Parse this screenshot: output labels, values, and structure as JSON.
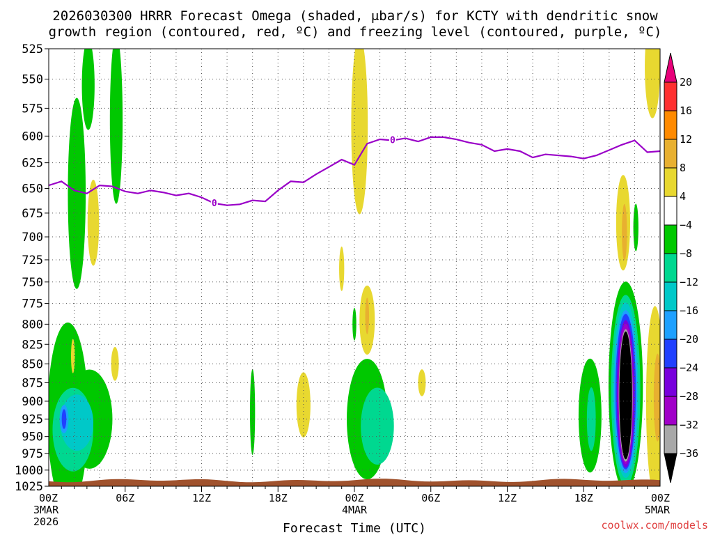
{
  "chart_data": {
    "type": "heatmap",
    "title": "2026030300 HRRR Forecast Omega (shaded, μbar/s) for KCTY with dendritic snow",
    "subtitle": "growth region (contoured, red, ºC) and freezing level (contoured, purple, ºC)",
    "xlabel": "Forecast Time (UTC)",
    "ylabel": "",
    "credit": "coolwx.com/models",
    "x_ticks": [
      {
        "h": 0,
        "label": "00Z",
        "sub1": "3MAR",
        "sub2": "2026"
      },
      {
        "h": 6,
        "label": "06Z",
        "sub1": "",
        "sub2": ""
      },
      {
        "h": 12,
        "label": "12Z",
        "sub1": "",
        "sub2": ""
      },
      {
        "h": 18,
        "label": "18Z",
        "sub1": "",
        "sub2": ""
      },
      {
        "h": 24,
        "label": "00Z",
        "sub1": "4MAR",
        "sub2": ""
      },
      {
        "h": 30,
        "label": "06Z",
        "sub1": "",
        "sub2": ""
      },
      {
        "h": 36,
        "label": "12Z",
        "sub1": "",
        "sub2": ""
      },
      {
        "h": 42,
        "label": "18Z",
        "sub1": "",
        "sub2": ""
      },
      {
        "h": 48,
        "label": "00Z",
        "sub1": "5MAR",
        "sub2": ""
      }
    ],
    "xlim": [
      0,
      48
    ],
    "y_ticks": [
      525,
      550,
      575,
      600,
      625,
      650,
      675,
      700,
      725,
      750,
      775,
      800,
      825,
      850,
      875,
      900,
      925,
      950,
      975,
      1000,
      1025
    ],
    "ylim": [
      525,
      1025
    ],
    "y_scale": "log-pressure",
    "grid": true,
    "colorbar": {
      "levels": [
        -36,
        -32,
        -28,
        -24,
        -20,
        -16,
        -12,
        -8,
        -4,
        4,
        8,
        12,
        16,
        20
      ],
      "labels": [
        "20",
        "16",
        "12",
        "8",
        "4",
        "−4",
        "−8",
        "−12",
        "−16",
        "−20",
        "−24",
        "−28",
        "−32",
        "−36"
      ],
      "colors": {
        "gt20": "#e8007a",
        "16_20": "#ff3030",
        "12_16": "#ff8a00",
        "8_12": "#e8b030",
        "4_8": "#e8d830",
        "m4_4": "#ffffff",
        "m8_m4": "#00c800",
        "m12_m8": "#00d890",
        "m16_m12": "#00c8c8",
        "m20_m16": "#1ea0ff",
        "m24_m20": "#2040ff",
        "m28_m24": "#7800dc",
        "m32_m28": "#a000c8",
        "m36_m32": "#a8a8a8",
        "lt_m36": "#000000"
      }
    },
    "freezing_level": {
      "label": "0",
      "color": "#9a00c8",
      "x": [
        0,
        1,
        2,
        3,
        4,
        5,
        6,
        7,
        8,
        9,
        10,
        11,
        12,
        13,
        14,
        15,
        16,
        17,
        18,
        19,
        20,
        21,
        22,
        23,
        24,
        25,
        26,
        27,
        28,
        29,
        30,
        31,
        32,
        33,
        34,
        35,
        36,
        37,
        38,
        39,
        40,
        41,
        42,
        43,
        44,
        45,
        46,
        47,
        48
      ],
      "p": [
        647,
        643,
        652,
        655,
        647,
        648,
        653,
        655,
        652,
        654,
        657,
        655,
        659,
        665,
        667,
        666,
        662,
        663,
        652,
        643,
        644,
        636,
        629,
        622,
        627,
        607,
        603,
        604,
        602,
        605,
        601,
        601,
        603,
        606,
        608,
        614,
        612,
        614,
        620,
        617,
        618,
        619,
        621,
        618,
        613,
        608,
        604,
        615,
        614
      ],
      "label_at": [
        [
          13,
          665
        ],
        [
          27,
          604
        ]
      ]
    },
    "omega_features": [
      {
        "t": 3.1,
        "p": 555,
        "dt": 0.5,
        "dp": 38,
        "c": "m8_m4"
      },
      {
        "t": 5.3,
        "p": 585,
        "dt": 0.5,
        "dp": 75,
        "c": "m8_m4"
      },
      {
        "t": 2.2,
        "p": 655,
        "dt": 0.7,
        "dp": 95,
        "c": "m8_m4"
      },
      {
        "t": 3.5,
        "p": 685,
        "dt": 0.45,
        "dp": 45,
        "c": "4_8"
      },
      {
        "t": 1.5,
        "p": 920,
        "dt": 1.6,
        "dp": 130,
        "c": "m8_m4"
      },
      {
        "t": 3.2,
        "p": 925,
        "dt": 1.8,
        "dp": 70,
        "c": "m8_m4"
      },
      {
        "t": 1.9,
        "p": 940,
        "dt": 1.6,
        "dp": 60,
        "c": "m12_m8"
      },
      {
        "t": 2.2,
        "p": 930,
        "dt": 1.3,
        "dp": 40,
        "c": "m16_m12"
      },
      {
        "t": 1.2,
        "p": 925,
        "dt": 0.35,
        "dp": 20,
        "c": "m20_m16"
      },
      {
        "t": 1.2,
        "p": 925,
        "dt": 0.18,
        "dp": 14,
        "c": "m24_m20"
      },
      {
        "t": 1.9,
        "p": 840,
        "dt": 0.15,
        "dp": 22,
        "c": "4_8"
      },
      {
        "t": 5.2,
        "p": 850,
        "dt": 0.3,
        "dp": 22,
        "c": "4_8"
      },
      {
        "t": 16.0,
        "p": 915,
        "dt": 0.2,
        "dp": 60,
        "c": "m8_m4"
      },
      {
        "t": 20.0,
        "p": 905,
        "dt": 0.55,
        "dp": 45,
        "c": "4_8"
      },
      {
        "t": 24.4,
        "p": 590,
        "dt": 0.65,
        "dp": 80,
        "c": "4_8"
      },
      {
        "t": 23.0,
        "p": 735,
        "dt": 0.2,
        "dp": 25,
        "c": "4_8"
      },
      {
        "t": 25.0,
        "p": 795,
        "dt": 0.6,
        "dp": 42,
        "c": "4_8"
      },
      {
        "t": 25.0,
        "p": 790,
        "dt": 0.15,
        "dp": 22,
        "c": "8_12"
      },
      {
        "t": 24.0,
        "p": 800,
        "dt": 0.15,
        "dp": 20,
        "c": "m8_m4"
      },
      {
        "t": 25.0,
        "p": 925,
        "dt": 1.6,
        "dp": 85,
        "c": "m8_m4"
      },
      {
        "t": 25.8,
        "p": 935,
        "dt": 1.3,
        "dp": 55,
        "c": "m12_m8"
      },
      {
        "t": 29.3,
        "p": 875,
        "dt": 0.3,
        "dp": 18,
        "c": "4_8"
      },
      {
        "t": 42.5,
        "p": 920,
        "dt": 0.9,
        "dp": 80,
        "c": "m8_m4"
      },
      {
        "t": 42.6,
        "p": 925,
        "dt": 0.35,
        "dp": 45,
        "c": "m12_m8"
      },
      {
        "t": 45.1,
        "p": 685,
        "dt": 0.55,
        "dp": 50,
        "c": "4_8"
      },
      {
        "t": 45.2,
        "p": 695,
        "dt": 0.2,
        "dp": 30,
        "c": "8_12"
      },
      {
        "t": 46.1,
        "p": 690,
        "dt": 0.2,
        "dp": 25,
        "c": "m8_m4"
      },
      {
        "t": 47.4,
        "p": 540,
        "dt": 0.6,
        "dp": 42,
        "c": "4_8"
      },
      {
        "t": 47.6,
        "p": 900,
        "dt": 0.7,
        "dp": 130,
        "c": "4_8"
      },
      {
        "t": 47.8,
        "p": 895,
        "dt": 0.3,
        "dp": 60,
        "c": "8_12"
      },
      {
        "t": 45.3,
        "p": 880,
        "dt": 1.35,
        "dp": 140,
        "c": "m8_m4"
      },
      {
        "t": 45.3,
        "p": 885,
        "dt": 1.15,
        "dp": 128,
        "c": "m12_m8"
      },
      {
        "t": 45.3,
        "p": 885,
        "dt": 1.0,
        "dp": 118,
        "c": "m16_m12"
      },
      {
        "t": 45.3,
        "p": 887,
        "dt": 0.9,
        "dp": 110,
        "c": "m20_m16"
      },
      {
        "t": 45.3,
        "p": 887,
        "dt": 0.8,
        "dp": 105,
        "c": "m24_m20"
      },
      {
        "t": 45.3,
        "p": 890,
        "dt": 0.7,
        "dp": 100,
        "c": "m28_m24"
      },
      {
        "t": 45.3,
        "p": 890,
        "dt": 0.6,
        "dp": 95,
        "c": "m32_m28"
      },
      {
        "t": 45.3,
        "p": 892,
        "dt": 0.55,
        "dp": 90,
        "c": "m36_m32"
      },
      {
        "t": 45.3,
        "p": 892,
        "dt": 0.5,
        "dp": 87,
        "c": "lt_m36"
      }
    ],
    "terrain": {
      "color": "#a0522d",
      "top_p": 1016
    }
  }
}
